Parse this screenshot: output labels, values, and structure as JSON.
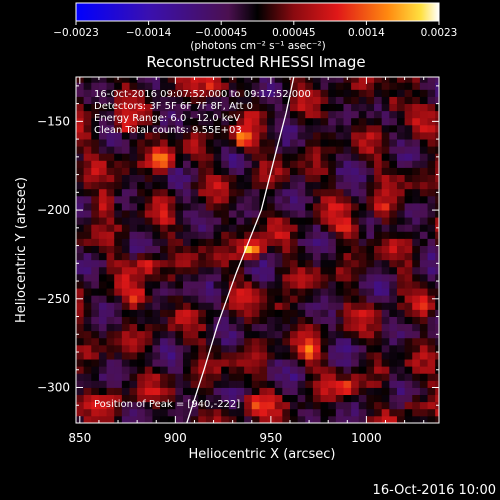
{
  "chart_data": {
    "type": "heatmap",
    "title": "Reconstructed RHESSI Image",
    "xlabel": "Heliocentric X (arcsec)",
    "ylabel": "Heliocentric Y (arcsec)",
    "xlim": [
      848,
      1038
    ],
    "ylim": [
      -320,
      -125
    ],
    "x_ticks": [
      850,
      900,
      950,
      1000
    ],
    "y_ticks": [
      -300,
      -250,
      -200,
      -150
    ],
    "colorbar": {
      "range": [
        -0.0023,
        0.0023
      ],
      "ticks": [
        "-0.0023",
        "-0.0014",
        "-0.00045",
        "0.00045",
        "0.0014",
        "0.0023"
      ],
      "unit_label": "(photons cm⁻² s⁻¹ asec⁻²)",
      "colormap": "blue-purple-red-orange-yellow-white"
    },
    "grid": {
      "pixel_size_arcsec": 4,
      "nx": 48,
      "ny": 49
    },
    "annotations": [
      "16-Oct-2016 09:07:52.000 to 09:17:52.000",
      "Detectors: 3F 5F 6F 7F 8F, Att 0",
      "Energy Range: 6.0 - 12.0 keV",
      "Clean     Total counts: 9.55E+03"
    ],
    "peak": {
      "label": "Position of Peak = [940,-222]",
      "x": 940,
      "y": -222
    },
    "limb_curve": [
      [
        906,
        -320
      ],
      [
        915,
        -290
      ],
      [
        922,
        -265
      ],
      [
        932,
        -235
      ],
      [
        945,
        -200
      ],
      [
        952,
        -170
      ],
      [
        958,
        -145
      ],
      [
        962,
        -125
      ]
    ],
    "hot_spots": [
      {
        "x": 940,
        "y": -222,
        "v": 0.0023
      },
      {
        "x": 893,
        "y": -172,
        "v": 0.0019
      },
      {
        "x": 935,
        "y": -160,
        "v": 0.0017
      },
      {
        "x": 873,
        "y": -152,
        "v": 0.0014
      },
      {
        "x": 885,
        "y": -230,
        "v": 0.0013
      },
      {
        "x": 880,
        "y": -250,
        "v": 0.0012
      },
      {
        "x": 990,
        "y": -210,
        "v": 0.0012
      },
      {
        "x": 1008,
        "y": -200,
        "v": 0.0011
      },
      {
        "x": 862,
        "y": -195,
        "v": 0.0011
      },
      {
        "x": 1015,
        "y": -140,
        "v": 0.001
      },
      {
        "x": 920,
        "y": -130,
        "v": 0.001
      },
      {
        "x": 970,
        "y": -280,
        "v": 0.001
      },
      {
        "x": 955,
        "y": -255,
        "v": 0.0009
      },
      {
        "x": 990,
        "y": -300,
        "v": 0.0009
      },
      {
        "x": 1030,
        "y": -255,
        "v": 0.0009
      },
      {
        "x": 1025,
        "y": -310,
        "v": 0.0009
      },
      {
        "x": 940,
        "y": -310,
        "v": 0.0009
      },
      {
        "x": 870,
        "y": -305,
        "v": 0.0008
      }
    ]
  },
  "footer": {
    "date": "16-Oct-2016 10:00"
  }
}
